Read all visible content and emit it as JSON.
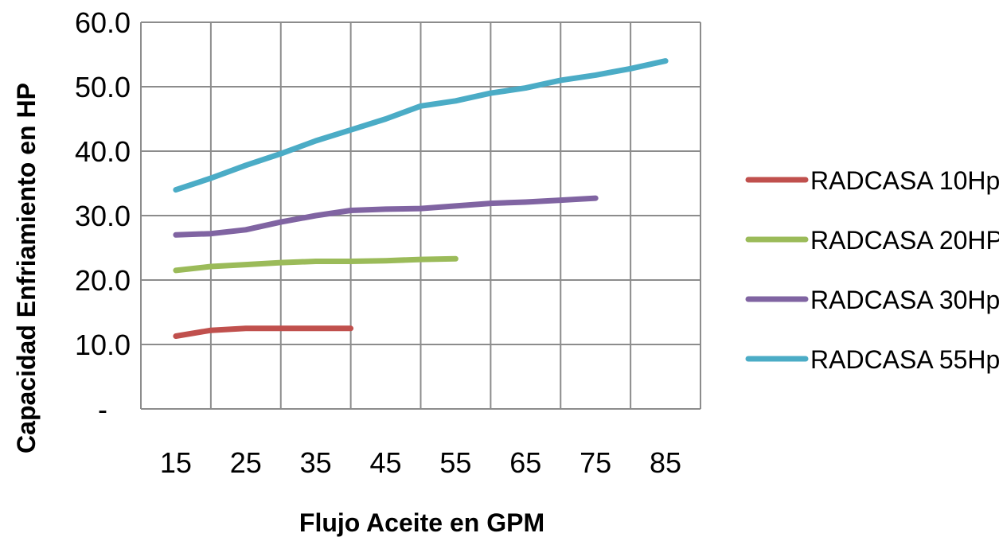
{
  "chart_data": {
    "type": "line",
    "title": "",
    "xlabel": "Flujo Aceite en GPM",
    "ylabel": "Capacidad Enfriamiento en HP",
    "x_ticks": [
      "15",
      "25",
      "35",
      "45",
      "55",
      "65",
      "75",
      "85"
    ],
    "x_tick_values": [
      15,
      25,
      35,
      45,
      55,
      65,
      75,
      85
    ],
    "xlim": [
      10,
      90
    ],
    "y_ticks": [
      "-",
      "10.0",
      "20.0",
      "30.0",
      "40.0",
      "50.0",
      "60.0"
    ],
    "y_tick_values": [
      0,
      10,
      20,
      30,
      40,
      50,
      60
    ],
    "ylim": [
      0,
      60
    ],
    "grid": true,
    "legend_position": "right",
    "series": [
      {
        "name": "RADCASA 10Hp",
        "color": "#c0504d",
        "points": [
          [
            15,
            11.3
          ],
          [
            20,
            12.2
          ],
          [
            25,
            12.5
          ],
          [
            30,
            12.5
          ],
          [
            35,
            12.5
          ],
          [
            40,
            12.5
          ]
        ]
      },
      {
        "name": "RADCASA 20HP",
        "color": "#9bbb59",
        "points": [
          [
            15,
            21.5
          ],
          [
            20,
            22.1
          ],
          [
            25,
            22.4
          ],
          [
            30,
            22.7
          ],
          [
            35,
            22.9
          ],
          [
            40,
            22.9
          ],
          [
            45,
            23.0
          ],
          [
            50,
            23.2
          ],
          [
            55,
            23.3
          ]
        ]
      },
      {
        "name": "RADCASA 30Hp",
        "color": "#8064a2",
        "points": [
          [
            15,
            27.0
          ],
          [
            20,
            27.2
          ],
          [
            25,
            27.8
          ],
          [
            30,
            29.0
          ],
          [
            35,
            30.0
          ],
          [
            40,
            30.8
          ],
          [
            45,
            31.0
          ],
          [
            50,
            31.1
          ],
          [
            55,
            31.5
          ],
          [
            60,
            31.9
          ],
          [
            65,
            32.1
          ],
          [
            70,
            32.4
          ],
          [
            75,
            32.7
          ]
        ]
      },
      {
        "name": "RADCASA 55Hp",
        "color": "#4bacc6",
        "points": [
          [
            15,
            34.0
          ],
          [
            20,
            35.8
          ],
          [
            25,
            37.8
          ],
          [
            30,
            39.6
          ],
          [
            35,
            41.6
          ],
          [
            40,
            43.3
          ],
          [
            45,
            45.0
          ],
          [
            50,
            47.0
          ],
          [
            55,
            47.8
          ],
          [
            60,
            49.0
          ],
          [
            65,
            49.8
          ],
          [
            70,
            51.0
          ],
          [
            75,
            51.8
          ],
          [
            80,
            52.8
          ],
          [
            85,
            54.0
          ]
        ]
      }
    ]
  }
}
